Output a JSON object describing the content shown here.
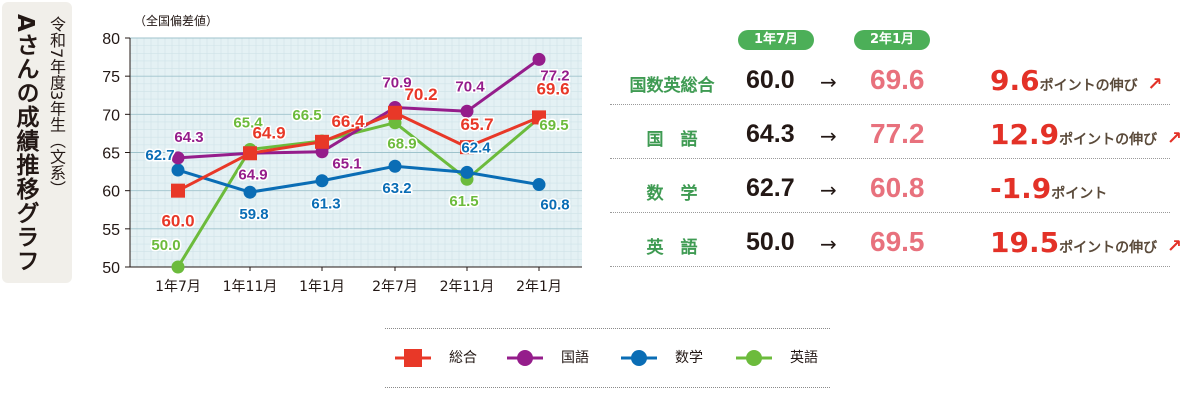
{
  "sidebar": {
    "subtitle": "令和7年度3年生（文系）",
    "title": "Aさんの成績推移グラフ"
  },
  "chart_data": {
    "type": "line",
    "ylabel": "（全国偏差値）",
    "ylim": [
      50,
      80
    ],
    "yticks": [
      50,
      55,
      60,
      65,
      70,
      75,
      80
    ],
    "grid": true,
    "categories": [
      "1年7月",
      "1年11月",
      "1年1月",
      "2年7月",
      "2年11月",
      "2年1月"
    ],
    "series": [
      {
        "name": "総合",
        "color": "#e83828",
        "marker": "square",
        "values": [
          60.0,
          64.9,
          66.4,
          70.2,
          65.7,
          69.6
        ],
        "labels": [
          "60.0",
          "64.9",
          "66.4",
          "70.2",
          "65.7",
          "69.6"
        ]
      },
      {
        "name": "国語",
        "color": "#951d8b",
        "marker": "circle",
        "values": [
          64.3,
          64.9,
          65.1,
          70.9,
          70.4,
          77.2
        ],
        "labels": [
          "64.3",
          "64.9",
          "65.1",
          "70.9",
          "70.4",
          "77.2"
        ]
      },
      {
        "name": "数学",
        "color": "#0a6db5",
        "marker": "circle",
        "values": [
          62.7,
          59.8,
          61.3,
          63.2,
          62.4,
          60.8
        ],
        "labels": [
          "62.7",
          "59.8",
          "61.3",
          "63.2",
          "62.4",
          "60.8"
        ]
      },
      {
        "name": "英語",
        "color": "#6cbb3c",
        "marker": "circle",
        "values": [
          50.0,
          65.4,
          66.5,
          68.9,
          61.5,
          69.5
        ],
        "labels": [
          "50.0",
          "65.4",
          "66.5",
          "68.9",
          "61.5",
          "69.5"
        ]
      }
    ],
    "legend_position": "bottom"
  },
  "table": {
    "headers": [
      "1年7月",
      "2年1月"
    ],
    "rows": [
      {
        "subject": "国数英総合",
        "before": "60.0",
        "after": "69.6",
        "diff": "9.6",
        "suffix": "ポイントの伸び",
        "up": true
      },
      {
        "subject": "国　語",
        "before": "64.3",
        "after": "77.2",
        "diff": "12.9",
        "suffix": "ポイントの伸び",
        "up": true
      },
      {
        "subject": "数　学",
        "before": "62.7",
        "after": "60.8",
        "diff": "-1.9",
        "suffix": "ポイント",
        "up": false
      },
      {
        "subject": "英　語",
        "before": "50.0",
        "after": "69.5",
        "diff": "19.5",
        "suffix": "ポイントの伸び",
        "up": true
      }
    ],
    "arrow": "→",
    "up_arrow": "↗"
  },
  "legend": [
    "総合",
    "国語",
    "数学",
    "英語"
  ]
}
